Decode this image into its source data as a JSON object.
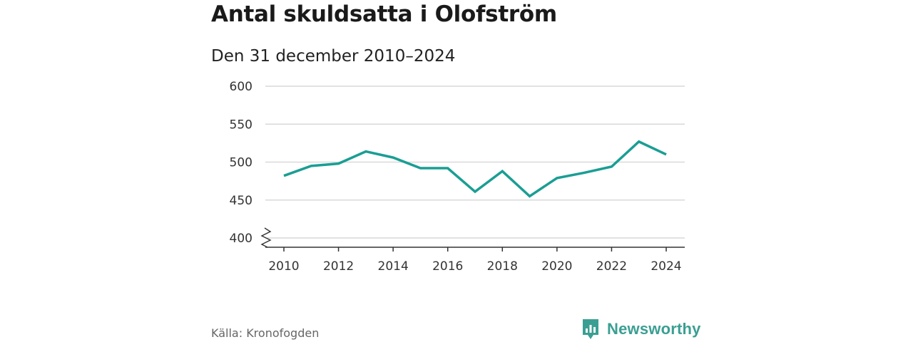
{
  "header": {
    "title": "Antal skuldsatta i Olofström",
    "subtitle": "Den 31 december 2010–2024"
  },
  "chart_data": {
    "type": "line",
    "title": "Antal skuldsatta i Olofström",
    "subtitle": "Den 31 december 2010–2024",
    "xlabel": "",
    "ylabel": "",
    "x": [
      2010,
      2011,
      2012,
      2013,
      2014,
      2015,
      2016,
      2017,
      2018,
      2019,
      2020,
      2021,
      2022,
      2023,
      2024
    ],
    "series": [
      {
        "name": "Antal skuldsatta",
        "color": "#1a9e94",
        "values": [
          482,
          495,
          498,
          514,
          506,
          492,
          492,
          461,
          488,
          455,
          479,
          486,
          494,
          527,
          510
        ]
      }
    ],
    "ylim": [
      400,
      600
    ],
    "yticks": [
      400,
      450,
      500,
      550,
      600
    ],
    "xticks": [
      2010,
      2012,
      2014,
      2016,
      2018,
      2020,
      2022,
      2024
    ],
    "axis_break": true,
    "grid": true
  },
  "footer": {
    "source": "Källa: Kronofogden",
    "brand": "Newsworthy",
    "brand_color": "#3a9f92"
  }
}
